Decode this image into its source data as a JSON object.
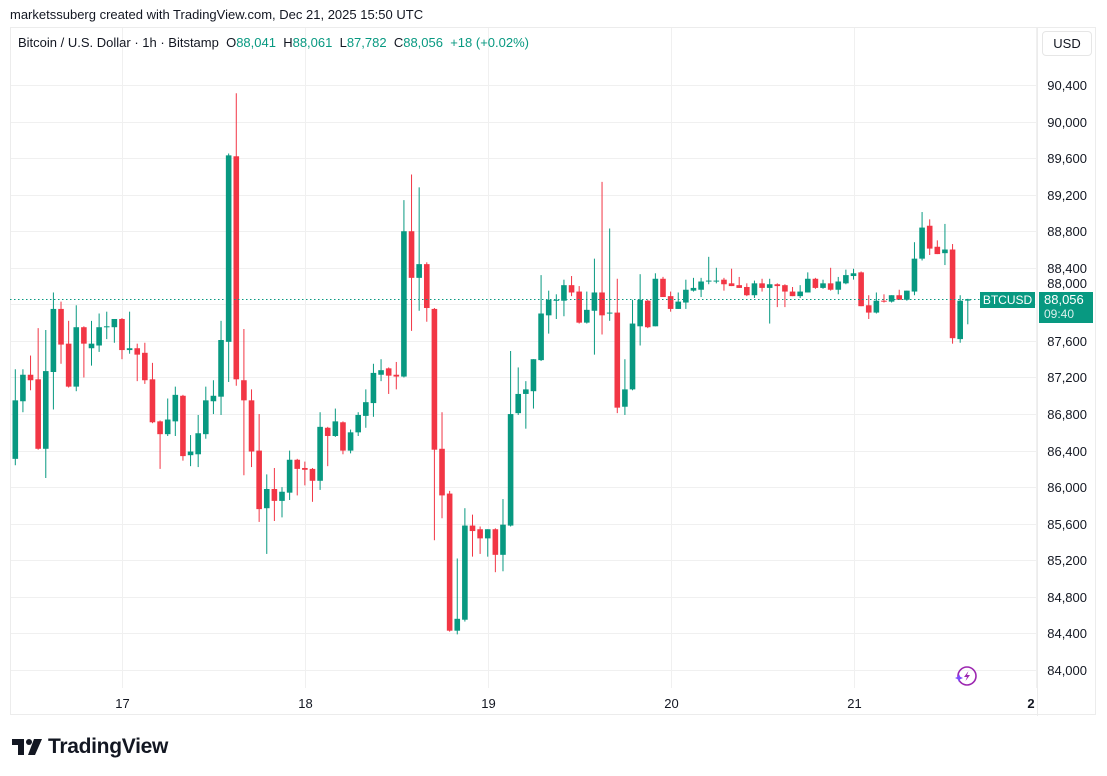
{
  "credit": "marketssuberg created with TradingView.com, Dec 21, 2025 15:50 UTC",
  "legend": {
    "symbol": "Bitcoin / U.S. Dollar · 1h · Bitstamp",
    "o_label": "O",
    "o": "88,041",
    "h_label": "H",
    "h": "88,061",
    "l_label": "L",
    "l": "87,782",
    "c_label": "C",
    "c": "88,056",
    "change": "+18 (+0.02%)"
  },
  "currency_button": "USD",
  "last_price": {
    "ticker": "BTCUSD",
    "price": "88,056",
    "countdown": "09:40",
    "value": 88056
  },
  "logo_text": "TradingView",
  "icons": {
    "assistant": "sparkle-lightning-icon",
    "logo": "tradingview-logo-icon"
  },
  "colors": {
    "up": "#089981",
    "down": "#f23645",
    "grid": "#f0f0f0",
    "assistant": "#9c27b0"
  },
  "chart_data": {
    "type": "candlestick",
    "interval": "1h",
    "title": "",
    "xlabel": "",
    "ylabel": "",
    "ylim": [
      83700,
      90650
    ],
    "grid": true,
    "y_ticks": [
      "84,000",
      "84,400",
      "84,800",
      "85,200",
      "85,600",
      "86,000",
      "86,400",
      "86,800",
      "87,200",
      "87,600",
      "88,000",
      "88,400",
      "88,800",
      "89,200",
      "89,600",
      "90,000",
      "90,400"
    ],
    "y_tick_values": [
      84000,
      84400,
      84800,
      85200,
      85600,
      86000,
      86400,
      86800,
      87200,
      87600,
      88000,
      88400,
      88800,
      89200,
      89600,
      90000,
      90400
    ],
    "x_ticks": [
      "17",
      "18",
      "19",
      "20",
      "21",
      "2"
    ],
    "x_tick_candle_index": [
      14,
      38,
      62,
      86,
      110,
      134
    ],
    "ohlc": [
      [
        86310,
        87290,
        86240,
        86950
      ],
      [
        86940,
        87290,
        86820,
        87230
      ],
      [
        87230,
        87440,
        87060,
        87170
      ],
      [
        87180,
        87740,
        86410,
        86420
      ],
      [
        86420,
        87720,
        86100,
        87270
      ],
      [
        87260,
        88130,
        86850,
        87950
      ],
      [
        87950,
        88030,
        87350,
        87560
      ],
      [
        87570,
        87820,
        87090,
        87100
      ],
      [
        87100,
        87990,
        87050,
        87750
      ],
      [
        87750,
        87760,
        87200,
        87570
      ],
      [
        87520,
        87820,
        87330,
        87570
      ],
      [
        87550,
        87900,
        87480,
        87750
      ],
      [
        87750,
        87920,
        87620,
        87760
      ],
      [
        87750,
        87840,
        87580,
        87840
      ],
      [
        87840,
        87850,
        87400,
        87500
      ],
      [
        87500,
        87920,
        87460,
        87520
      ],
      [
        87520,
        87570,
        87160,
        87450
      ],
      [
        87470,
        87580,
        87130,
        87170
      ],
      [
        87180,
        87360,
        86700,
        86710
      ],
      [
        86720,
        86730,
        86200,
        86580
      ],
      [
        86580,
        86970,
        86560,
        86740
      ],
      [
        86720,
        87100,
        86560,
        87010
      ],
      [
        87000,
        87010,
        86290,
        86340
      ],
      [
        86350,
        86570,
        86230,
        86390
      ],
      [
        86360,
        86790,
        86220,
        86590
      ],
      [
        86580,
        87100,
        86530,
        86950
      ],
      [
        86940,
        87170,
        86800,
        87000
      ],
      [
        86990,
        87820,
        86790,
        87610
      ],
      [
        87590,
        89650,
        87150,
        89630
      ],
      [
        89620,
        90310,
        87110,
        87180
      ],
      [
        87170,
        87730,
        86130,
        86950
      ],
      [
        86950,
        87070,
        86220,
        86390
      ],
      [
        86400,
        86800,
        85620,
        85760
      ],
      [
        85770,
        86140,
        85270,
        85980
      ],
      [
        85980,
        86210,
        85630,
        85850
      ],
      [
        85850,
        86000,
        85670,
        85950
      ],
      [
        85940,
        86400,
        85860,
        86300
      ],
      [
        86300,
        86310,
        85910,
        86200
      ],
      [
        86210,
        86280,
        86020,
        86190
      ],
      [
        86200,
        86210,
        85840,
        86070
      ],
      [
        86070,
        86820,
        85970,
        86660
      ],
      [
        86650,
        86660,
        86230,
        86560
      ],
      [
        86560,
        86860,
        86550,
        86720
      ],
      [
        86710,
        86720,
        86360,
        86400
      ],
      [
        86400,
        86630,
        86370,
        86600
      ],
      [
        86600,
        86820,
        86560,
        86790
      ],
      [
        86780,
        87070,
        86650,
        86930
      ],
      [
        86920,
        87350,
        86770,
        87250
      ],
      [
        87230,
        87400,
        87160,
        87280
      ],
      [
        87300,
        87310,
        87020,
        87220
      ],
      [
        87230,
        87370,
        87070,
        87210
      ],
      [
        87210,
        89140,
        87200,
        88800
      ],
      [
        88800,
        89420,
        87710,
        88290
      ],
      [
        88290,
        89280,
        87930,
        88440
      ],
      [
        88440,
        88460,
        87810,
        87960
      ],
      [
        87950,
        87960,
        85420,
        86410
      ],
      [
        86420,
        86820,
        85660,
        85910
      ],
      [
        85930,
        85960,
        84420,
        84430
      ],
      [
        84430,
        85220,
        84390,
        84560
      ],
      [
        84550,
        85770,
        84530,
        85580
      ],
      [
        85580,
        85700,
        85240,
        85520
      ],
      [
        85540,
        85570,
        85270,
        85440
      ],
      [
        85440,
        85540,
        85240,
        85540
      ],
      [
        85540,
        85550,
        85070,
        85260
      ],
      [
        85260,
        85870,
        85080,
        85590
      ],
      [
        85580,
        87490,
        85570,
        86800
      ],
      [
        86810,
        87310,
        86790,
        87020
      ],
      [
        87020,
        87160,
        86640,
        87070
      ],
      [
        87050,
        87400,
        86860,
        87400
      ],
      [
        87390,
        88320,
        87380,
        87900
      ],
      [
        87880,
        88150,
        87680,
        88050
      ],
      [
        88040,
        88110,
        87840,
        88050
      ],
      [
        88040,
        88270,
        87870,
        88210
      ],
      [
        88210,
        88310,
        88090,
        88130
      ],
      [
        88140,
        88200,
        87790,
        87800
      ],
      [
        87800,
        88140,
        87790,
        87940
      ],
      [
        87930,
        88500,
        87450,
        88130
      ],
      [
        88130,
        89340,
        87670,
        87880
      ],
      [
        87900,
        88830,
        87820,
        87910
      ],
      [
        87910,
        88280,
        86810,
        86870
      ],
      [
        86880,
        87400,
        86790,
        87070
      ],
      [
        87070,
        88050,
        87060,
        87790
      ],
      [
        87760,
        88330,
        87550,
        88050
      ],
      [
        88040,
        88050,
        87740,
        87750
      ],
      [
        87760,
        88340,
        87760,
        88280
      ],
      [
        88280,
        88300,
        88080,
        88080
      ],
      [
        88090,
        88140,
        87920,
        87950
      ],
      [
        87950,
        88130,
        87950,
        88030
      ],
      [
        88020,
        88270,
        87950,
        88160
      ],
      [
        88150,
        88290,
        88140,
        88180
      ],
      [
        88160,
        88290,
        88080,
        88250
      ],
      [
        88250,
        88520,
        88220,
        88260
      ],
      [
        88250,
        88400,
        88230,
        88260
      ],
      [
        88270,
        88290,
        88150,
        88220
      ],
      [
        88230,
        88390,
        88200,
        88200
      ],
      [
        88210,
        88300,
        88180,
        88180
      ],
      [
        88190,
        88230,
        88090,
        88100
      ],
      [
        88100,
        88260,
        88070,
        88230
      ],
      [
        88230,
        88280,
        88140,
        88180
      ],
      [
        88180,
        88280,
        87790,
        88220
      ],
      [
        88220,
        88230,
        87970,
        88200
      ],
      [
        88210,
        88220,
        87970,
        88140
      ],
      [
        88140,
        88190,
        88090,
        88090
      ],
      [
        88090,
        88210,
        88070,
        88140
      ],
      [
        88130,
        88350,
        88130,
        88280
      ],
      [
        88280,
        88290,
        88170,
        88180
      ],
      [
        88180,
        88270,
        88170,
        88230
      ],
      [
        88230,
        88400,
        88150,
        88160
      ],
      [
        88160,
        88300,
        88110,
        88250
      ],
      [
        88230,
        88380,
        88220,
        88320
      ],
      [
        88310,
        88390,
        88270,
        88340
      ],
      [
        88350,
        88360,
        87980,
        87980
      ],
      [
        87990,
        88100,
        87840,
        87910
      ],
      [
        87910,
        88130,
        87900,
        88040
      ],
      [
        88040,
        88110,
        88020,
        88030
      ],
      [
        88030,
        88100,
        88020,
        88100
      ],
      [
        88100,
        88160,
        88050,
        88050
      ],
      [
        88050,
        88150,
        88040,
        88150
      ],
      [
        88140,
        88680,
        88100,
        88500
      ],
      [
        88500,
        89010,
        88480,
        88840
      ],
      [
        88860,
        88930,
        88540,
        88610
      ],
      [
        88630,
        88700,
        88550,
        88550
      ],
      [
        88560,
        88880,
        88430,
        88600
      ],
      [
        88600,
        88660,
        87570,
        87630
      ],
      [
        87620,
        88100,
        87580,
        88040
      ],
      [
        88041,
        88061,
        87782,
        88056
      ]
    ]
  }
}
